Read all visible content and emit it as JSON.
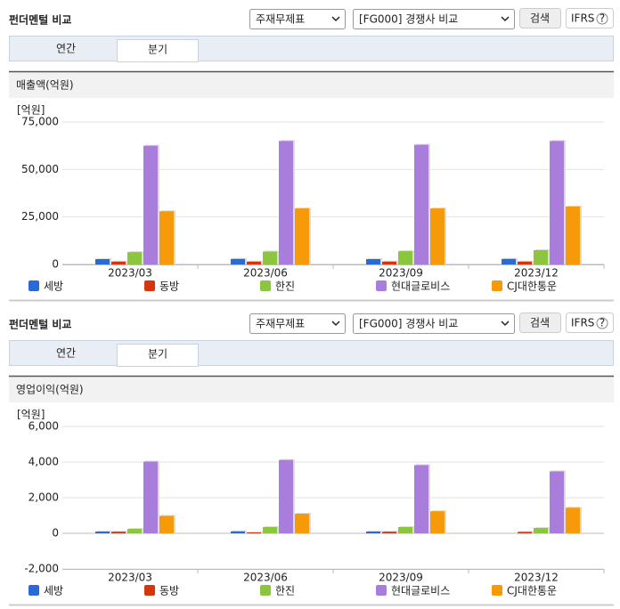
{
  "panels": [
    {
      "title": "펀더멘털 비교",
      "select1": "주재무제표",
      "select2": "[FG000] 경쟁사 비교",
      "search": "검색",
      "ifrs": "IFRS",
      "tabs": [
        "연간",
        "분기"
      ]
    },
    {
      "title": "펀더멘털 비교",
      "select1": "주재무제표",
      "select2": "[FG000] 경쟁사 비교",
      "search": "검색",
      "ifrs": "IFRS",
      "tabs": [
        "연간",
        "분기"
      ]
    }
  ],
  "chart_data": [
    {
      "type": "bar",
      "title": "매출액(억원)",
      "y_label": "[억원]",
      "categories": [
        "2023/03",
        "2023/06",
        "2023/09",
        "2023/12"
      ],
      "series": [
        {
          "name": "세방",
          "color": "#2a6ad6",
          "values": [
            2800,
            2900,
            2800,
            2900
          ]
        },
        {
          "name": "동방",
          "color": "#d4360f",
          "values": [
            1500,
            1500,
            1500,
            1500
          ]
        },
        {
          "name": "한진",
          "color": "#8cc63f",
          "values": [
            6500,
            6800,
            7000,
            7500
          ]
        },
        {
          "name": "현대글로비스",
          "color": "#a97ddb",
          "values": [
            62500,
            65000,
            63000,
            65000
          ]
        },
        {
          "name": "CJ대한통운",
          "color": "#f79a0a",
          "values": [
            28000,
            29500,
            29500,
            30500
          ]
        }
      ],
      "ylim": [
        0,
        75000
      ],
      "yticks": [
        0,
        {
          "value": 25000,
          "label": "25,000"
        },
        {
          "value": 50000,
          "label": "50,000"
        },
        {
          "value": 75000,
          "label": "75,000"
        }
      ],
      "grid": true
    },
    {
      "type": "bar",
      "title": "영업이익(억원)",
      "y_label": "[억원]",
      "categories": [
        "2023/03",
        "2023/06",
        "2023/09",
        "2023/12"
      ],
      "series": [
        {
          "name": "세방",
          "color": "#2a6ad6",
          "values": [
            100,
            110,
            100,
            null
          ]
        },
        {
          "name": "동방",
          "color": "#d4360f",
          "values": [
            90,
            50,
            90,
            80
          ]
        },
        {
          "name": "한진",
          "color": "#8cc63f",
          "values": [
            250,
            350,
            350,
            300
          ]
        },
        {
          "name": "현대글로비스",
          "color": "#a97ddb",
          "values": [
            4030,
            4120,
            3830,
            3480
          ]
        },
        {
          "name": "CJ대한통운",
          "color": "#f79a0a",
          "values": [
            980,
            1100,
            1240,
            1440
          ]
        }
      ],
      "ylim": [
        -2000,
        6000
      ],
      "yticks": [
        {
          "value": -2000,
          "label": "-2,000"
        },
        0,
        {
          "value": 2000,
          "label": "2,000"
        },
        {
          "value": 4000,
          "label": "4,000"
        },
        {
          "value": 6000,
          "label": "6,000"
        }
      ],
      "grid": true
    }
  ]
}
